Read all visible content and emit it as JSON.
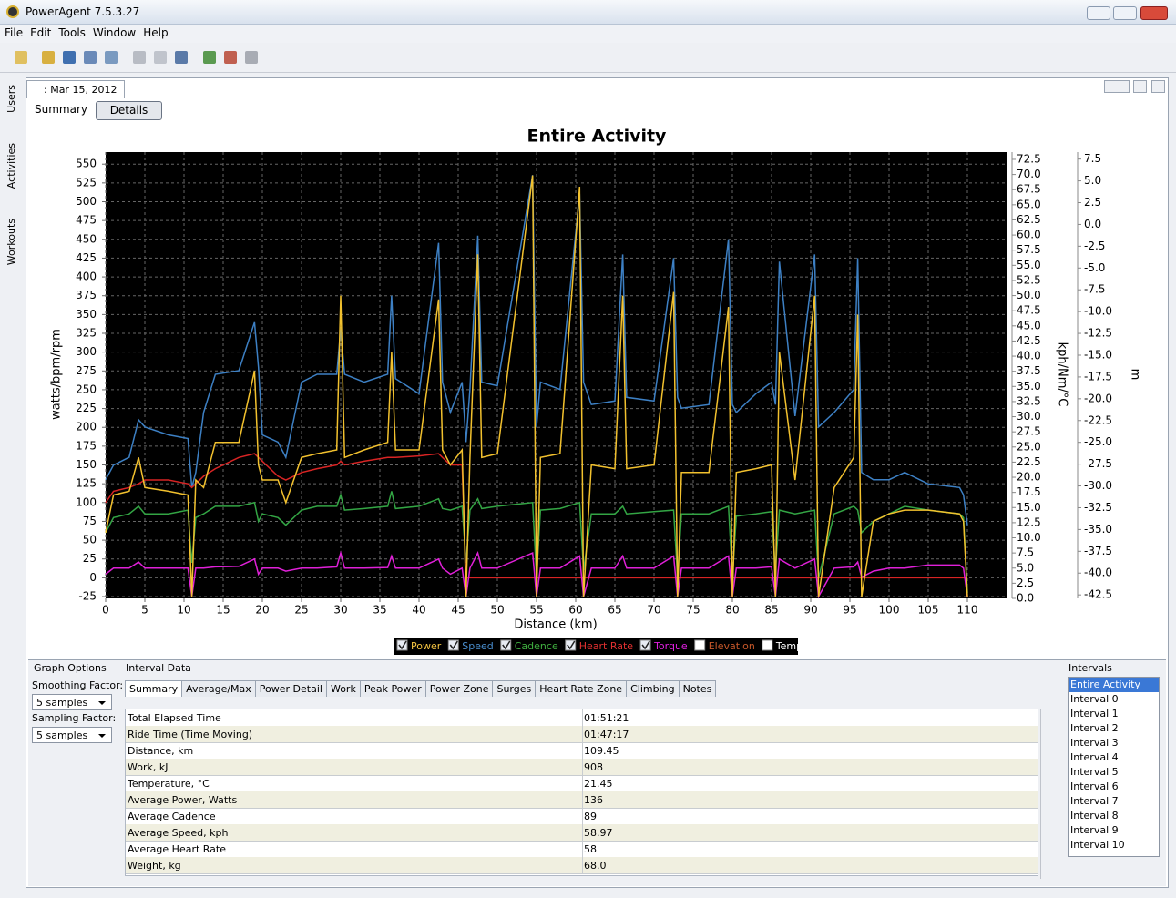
{
  "window": {
    "title": "PowerAgent 7.5.3.27"
  },
  "menu": [
    "File",
    "Edit",
    "Tools",
    "Window",
    "Help"
  ],
  "side_tabs": [
    "Users",
    "Activities",
    "Workouts"
  ],
  "document_tab": ": Mar 15, 2012",
  "view_buttons": [
    "Summary",
    "Details"
  ],
  "chart_data": {
    "type": "line",
    "title": "Entire Activity",
    "x_label": "Distance (km)",
    "y_label": "watts/bpm/rpm",
    "y2_label": "kph/Nm/°C",
    "y3_label": "m",
    "x": [
      0,
      1,
      3,
      4.2,
      5,
      8,
      10.5,
      11,
      11.5,
      12.5,
      14,
      17,
      19,
      19.5,
      20,
      22,
      23,
      25,
      27,
      29.5,
      30,
      30.5,
      33,
      36,
      36.5,
      37,
      40,
      42.5,
      43,
      44,
      45.5,
      46,
      46.5,
      47.5,
      48,
      50,
      54.5,
      55,
      55.5,
      58,
      60.5,
      61,
      62,
      65,
      66,
      66.5,
      70,
      72.5,
      73,
      73.5,
      77,
      79.5,
      80,
      80.5,
      83,
      85,
      85.5,
      86,
      88,
      90.5,
      91,
      93,
      95.5,
      96,
      96.5,
      98,
      100,
      102,
      105,
      109,
      109.5,
      110
    ],
    "series": [
      {
        "name": "Power",
        "color": "#f2c12e",
        "label_color": "#f5c542",
        "checked": true,
        "values": [
          60,
          110,
          115,
          160,
          120,
          115,
          110,
          -25,
          130,
          120,
          180,
          180,
          275,
          150,
          130,
          130,
          100,
          160,
          165,
          170,
          375,
          160,
          170,
          180,
          300,
          170,
          170,
          370,
          170,
          150,
          170,
          -25,
          160,
          430,
          160,
          165,
          535,
          -25,
          160,
          165,
          520,
          -25,
          150,
          145,
          375,
          145,
          150,
          380,
          -25,
          140,
          140,
          360,
          -25,
          140,
          145,
          150,
          -25,
          300,
          130,
          375,
          -25,
          120,
          160,
          350,
          -25,
          75,
          85,
          90,
          90,
          85,
          75,
          -25
        ]
      },
      {
        "name": "Speed",
        "color": "#3d80c4",
        "label_color": "#4a8fd0",
        "checked": true,
        "axis": "y2",
        "values": [
          19.6,
          22.0,
          23.3,
          29.5,
          28.3,
          27.0,
          26.4,
          18.3,
          20.8,
          30.7,
          37.0,
          37.6,
          45.6,
          38.2,
          27.0,
          25.8,
          23.3,
          35.7,
          37.0,
          37.0,
          44.4,
          37.0,
          35.7,
          37.0,
          50.0,
          36.3,
          33.8,
          58.7,
          35.7,
          30.7,
          35.7,
          25.8,
          34.5,
          59.9,
          35.7,
          35.1,
          69.9,
          28.3,
          35.7,
          34.5,
          66.8,
          35.7,
          32.0,
          32.6,
          56.8,
          33.2,
          32.6,
          56.2,
          33.2,
          31.4,
          32.0,
          59.3,
          32.0,
          30.7,
          33.8,
          35.7,
          32.0,
          55.6,
          30.1,
          56.8,
          28.3,
          30.7,
          34.5,
          56.2,
          20.8,
          19.6,
          19.6,
          20.8,
          18.9,
          18.3,
          17.1,
          12.1
        ]
      },
      {
        "name": "Cadence",
        "color": "#33a544",
        "label_color": "#40b040",
        "checked": true,
        "values": [
          60,
          80,
          85,
          95,
          85,
          85,
          90,
          20,
          80,
          85,
          95,
          95,
          100,
          75,
          85,
          80,
          70,
          90,
          95,
          95,
          110,
          90,
          92,
          95,
          115,
          92,
          95,
          105,
          92,
          90,
          95,
          20,
          90,
          105,
          92,
          95,
          100,
          0,
          90,
          92,
          100,
          10,
          85,
          85,
          95,
          85,
          88,
          90,
          0,
          85,
          85,
          95,
          0,
          82,
          85,
          88,
          10,
          90,
          85,
          90,
          0,
          85,
          95,
          90,
          60,
          75,
          85,
          95,
          90,
          85,
          80,
          -20
        ]
      },
      {
        "name": "Heart Rate",
        "color": "#d82424",
        "label_color": "#e03030",
        "checked": true,
        "values": [
          100,
          115,
          120,
          125,
          130,
          130,
          125,
          120,
          125,
          135,
          145,
          160,
          165,
          160,
          155,
          135,
          130,
          140,
          145,
          150,
          155,
          150,
          155,
          160,
          160,
          160,
          162,
          165,
          160,
          150,
          150,
          0,
          0,
          0,
          0,
          0,
          0,
          0,
          0,
          0,
          0,
          0,
          0,
          0,
          0,
          0,
          0,
          0,
          0,
          0,
          0,
          0,
          0,
          0,
          0,
          0,
          0,
          0,
          0,
          0,
          0,
          0,
          0,
          0,
          0,
          0,
          0,
          0,
          0,
          0,
          0,
          0
        ]
      },
      {
        "name": "Torque",
        "color": "#e020d8",
        "label_color": "#e020e0",
        "checked": true,
        "axis": "y2",
        "values": [
          4.0,
          5.0,
          5.0,
          6.0,
          5.0,
          5.0,
          5.0,
          0.3,
          5.0,
          5.0,
          5.2,
          5.3,
          6.5,
          4.0,
          5.0,
          5.0,
          4.5,
          5.0,
          5.0,
          5.2,
          7.5,
          5.0,
          5.0,
          5.1,
          7.0,
          5.0,
          5.0,
          6.5,
          5.0,
          4.0,
          5.0,
          0.3,
          5.0,
          7.5,
          5.0,
          5.0,
          7.5,
          0.3,
          5.0,
          5.0,
          7.0,
          0.3,
          5.0,
          5.0,
          7.0,
          5.0,
          5.0,
          7.0,
          0.3,
          5.0,
          5.0,
          7.0,
          0.3,
          5.0,
          5.0,
          5.2,
          0.3,
          6.5,
          5.0,
          6.5,
          0.3,
          5.0,
          5.2,
          6.0,
          3.5,
          4.5,
          5.0,
          5.0,
          5.5,
          5.5,
          5.0,
          0.3
        ]
      },
      {
        "name": "Elevation",
        "label_color": "#c8582a",
        "checked": false
      },
      {
        "name": "Temperature",
        "label_color": "#ffffff",
        "checked": false
      }
    ],
    "xlim": [
      0,
      115
    ],
    "xticks": [
      0,
      5,
      10,
      15,
      20,
      25,
      30,
      35,
      40,
      45,
      50,
      55,
      60,
      65,
      70,
      75,
      80,
      85,
      90,
      95,
      100,
      105,
      110
    ],
    "ylim": [
      -27.4,
      566
    ],
    "yticks": [
      -25,
      0,
      25,
      50,
      75,
      100,
      125,
      150,
      175,
      200,
      225,
      250,
      275,
      300,
      325,
      350,
      375,
      400,
      425,
      450,
      475,
      500,
      525,
      550
    ],
    "y2lim": [
      0,
      73.7
    ],
    "y2ticks": [
      {
        "value": 0,
        "label": "0.0"
      },
      2.5,
      {
        "value": 5,
        "label": "5.0"
      },
      7.5,
      {
        "value": 10,
        "label": "10.0"
      },
      12.5,
      {
        "value": 15,
        "label": "15.0"
      },
      17.5,
      {
        "value": 20,
        "label": "20.0"
      },
      22.5,
      {
        "value": 25,
        "label": "25.0"
      },
      27.5,
      {
        "value": 30,
        "label": "30.0"
      },
      32.5,
      {
        "value": 35,
        "label": "35.0"
      },
      37.5,
      {
        "value": 40,
        "label": "40.0"
      },
      42.5,
      {
        "value": 45,
        "label": "45.0"
      },
      47.5,
      {
        "value": 50,
        "label": "50.0"
      },
      52.5,
      {
        "value": 55,
        "label": "55.0"
      },
      57.5,
      {
        "value": 60,
        "label": "60.0"
      },
      62.5,
      {
        "value": 65,
        "label": "65.0"
      },
      67.5,
      {
        "value": 70,
        "label": "70.0"
      },
      72.5
    ],
    "y3lim": [
      -42.9,
      8.3
    ],
    "y3ticks": [
      7.5,
      {
        "value": 5,
        "label": "5.0"
      },
      2.5,
      {
        "value": 0,
        "label": "0.0"
      },
      -2.5,
      {
        "value": -5,
        "label": "-5.0"
      },
      -7.5,
      {
        "value": -10,
        "label": "-10.0"
      },
      -12.5,
      {
        "value": -15,
        "label": "-15.0"
      },
      -17.5,
      {
        "value": -20,
        "label": "-20.0"
      },
      -22.5,
      {
        "value": -25,
        "label": "-25.0"
      },
      -27.5,
      {
        "value": -30,
        "label": "-30.0"
      },
      -32.5,
      {
        "value": -35,
        "label": "-35.0"
      },
      -37.5,
      {
        "value": -40,
        "label": "-40.0"
      },
      -42.5
    ],
    "grid": true,
    "background": "#000000"
  },
  "graph_options": {
    "title": "Graph Options",
    "smoothing_label": "Smoothing Factor:",
    "smoothing_value": "5 samples",
    "sampling_label": "Sampling Factor:",
    "sampling_value": "5 samples"
  },
  "interval_data": {
    "title": "Interval Data",
    "tabs": [
      "Summary",
      "Average/Max",
      "Power Detail",
      "Work",
      "Peak Power",
      "Power Zone",
      "Surges",
      "Heart Rate Zone",
      "Climbing",
      "Notes"
    ],
    "rows": [
      [
        "Total Elapsed Time",
        "01:51:21"
      ],
      [
        "Ride Time (Time Moving)",
        "01:47:17"
      ],
      [
        "Distance, km",
        "109.45"
      ],
      [
        "Work, kJ",
        "908"
      ],
      [
        "Temperature, °C",
        "21.45"
      ],
      [
        "Average Power, Watts",
        "136"
      ],
      [
        "Average Cadence",
        "89"
      ],
      [
        "Average Speed, kph",
        "58.97"
      ],
      [
        "Average Heart Rate",
        "58"
      ],
      [
        "Weight, kg",
        "68.0"
      ]
    ]
  },
  "intervals": {
    "title": "Intervals",
    "items": [
      "Entire Activity",
      "Interval 0",
      "Interval 1",
      "Interval 2",
      "Interval 3",
      "Interval 4",
      "Interval 5",
      "Interval 6",
      "Interval 7",
      "Interval 8",
      "Interval 9",
      "Interval 10"
    ]
  }
}
